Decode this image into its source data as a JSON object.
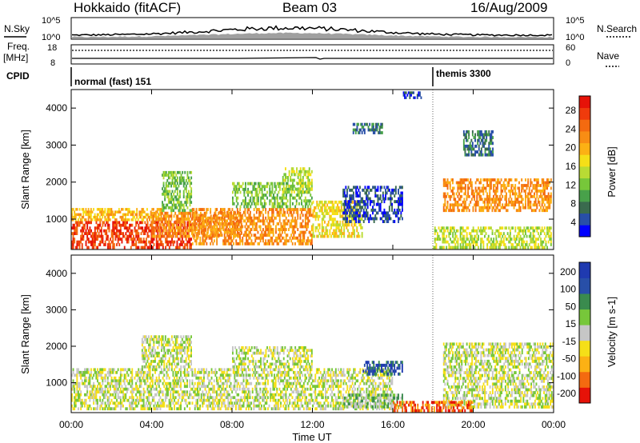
{
  "header": {
    "station": "Hokkaido (fitACF)",
    "beam": "Beam 03",
    "date": "16/Aug/2009"
  },
  "summary": {
    "nsky_label": "N.Sky",
    "nsky_ticks": [
      "10^5",
      "10^0"
    ],
    "nsearch_label": "N.Search",
    "nsearch_ticks": [
      "10^5",
      "10^0"
    ],
    "freq_label": "Freq.",
    "freq_unit": "[MHz]",
    "freq_ticks": [
      "18",
      "8"
    ],
    "nave_label": "Nave",
    "nave_ticks": [
      "60",
      "0"
    ],
    "cpid_label": "CPID",
    "cpid_segments": [
      {
        "label": "normal (fast) 151",
        "start_hr": 0,
        "end_hr": 18
      },
      {
        "label": "themis 3300",
        "start_hr": 18,
        "end_hr": 24
      }
    ]
  },
  "chart_data": [
    {
      "type": "heatmap",
      "name": "power",
      "ylabel": "Slant Range [km]",
      "xlabel": "Time UT",
      "xlim": [
        0,
        24
      ],
      "ylim": [
        180,
        4500
      ],
      "x_ticks": [
        "00:00",
        "04:00",
        "08:00",
        "12:00",
        "16:00",
        "20:00",
        "00:00"
      ],
      "y_ticks": [
        "1000",
        "2000",
        "3000",
        "4000"
      ],
      "colorbar": {
        "label": "Power [dB]",
        "ticks": [
          "28",
          "24",
          "20",
          "16",
          "12",
          "8",
          "4"
        ],
        "colors": [
          "#0000ff",
          "#284fa8",
          "#3a6b4e",
          "#48a14a",
          "#77c73a",
          "#b9db34",
          "#f5df18",
          "#fcb114",
          "#f88d14",
          "#f46a10",
          "#ef3b0c",
          "#e61208"
        ]
      },
      "regions": [
        {
          "t0": 0.0,
          "t1": 6.0,
          "r0": 200,
          "r1": 950,
          "level": 10
        },
        {
          "t0": 0.0,
          "t1": 4.5,
          "r0": 950,
          "r1": 1300,
          "level": 7
        },
        {
          "t0": 4.0,
          "t1": 8.5,
          "r0": 500,
          "r1": 1200,
          "level": 8
        },
        {
          "t0": 4.5,
          "t1": 6.0,
          "r0": 1200,
          "r1": 2300,
          "level": 4
        },
        {
          "t0": 6.0,
          "t1": 12.0,
          "r0": 300,
          "r1": 1300,
          "level": 8
        },
        {
          "t0": 8.0,
          "t1": 12.0,
          "r0": 1300,
          "r1": 2000,
          "level": 4
        },
        {
          "t0": 10.5,
          "t1": 12.0,
          "r0": 1700,
          "r1": 2400,
          "level": 5
        },
        {
          "t0": 12.0,
          "t1": 14.5,
          "r0": 500,
          "r1": 1500,
          "level": 6
        },
        {
          "t0": 13.5,
          "t1": 16.5,
          "r0": 900,
          "r1": 1900,
          "level": 1
        },
        {
          "t0": 14.0,
          "t1": 15.5,
          "r0": 3300,
          "r1": 3600,
          "level": 2
        },
        {
          "t0": 16.5,
          "t1": 17.5,
          "r0": 4250,
          "r1": 4450,
          "level": 1
        },
        {
          "t0": 18.5,
          "t1": 23.9,
          "r0": 1200,
          "r1": 2100,
          "level": 8
        },
        {
          "t0": 18.0,
          "t1": 23.9,
          "r0": 200,
          "r1": 800,
          "level": 5
        },
        {
          "t0": 19.5,
          "t1": 21.0,
          "r0": 2700,
          "r1": 3400,
          "level": 2
        }
      ]
    },
    {
      "type": "heatmap",
      "name": "velocity",
      "ylabel": "Slant Range [km]",
      "xlabel": "Time UT",
      "xlim": [
        0,
        24
      ],
      "ylim": [
        180,
        4500
      ],
      "x_ticks": [
        "00:00",
        "04:00",
        "08:00",
        "12:00",
        "16:00",
        "20:00",
        "00:00"
      ],
      "y_ticks": [
        "1000",
        "2000",
        "3000",
        "4000"
      ],
      "colorbar": {
        "label": "Velocity [m s-1]",
        "ticks": [
          "200",
          "100",
          "50",
          "15",
          "-15",
          "-50",
          "-100",
          "-200"
        ],
        "colors": [
          "#e61208",
          "#f46a10",
          "#fcb114",
          "#f5df18",
          "#c6c6c6",
          "#77c73a",
          "#3a8b4e",
          "#284fa8",
          "#1f3ab0"
        ]
      },
      "regions": [
        {
          "t0": 0.0,
          "t1": 16.0,
          "r0": 250,
          "r1": 1400,
          "level": 4
        },
        {
          "t0": 3.5,
          "t1": 6.0,
          "r0": 1400,
          "r1": 2300,
          "level": 4
        },
        {
          "t0": 8.0,
          "t1": 12.0,
          "r0": 1400,
          "r1": 2000,
          "level": 4
        },
        {
          "t0": 18.5,
          "t1": 24.0,
          "r0": 300,
          "r1": 2100,
          "level": 4
        },
        {
          "t0": 13.5,
          "t1": 16.5,
          "r0": 300,
          "r1": 700,
          "level": 5
        },
        {
          "t0": 16.0,
          "t1": 20.0,
          "r0": 200,
          "r1": 500,
          "level": 1
        },
        {
          "t0": 14.5,
          "t1": 16.5,
          "r0": 1200,
          "r1": 1600,
          "level": 7
        }
      ]
    }
  ]
}
